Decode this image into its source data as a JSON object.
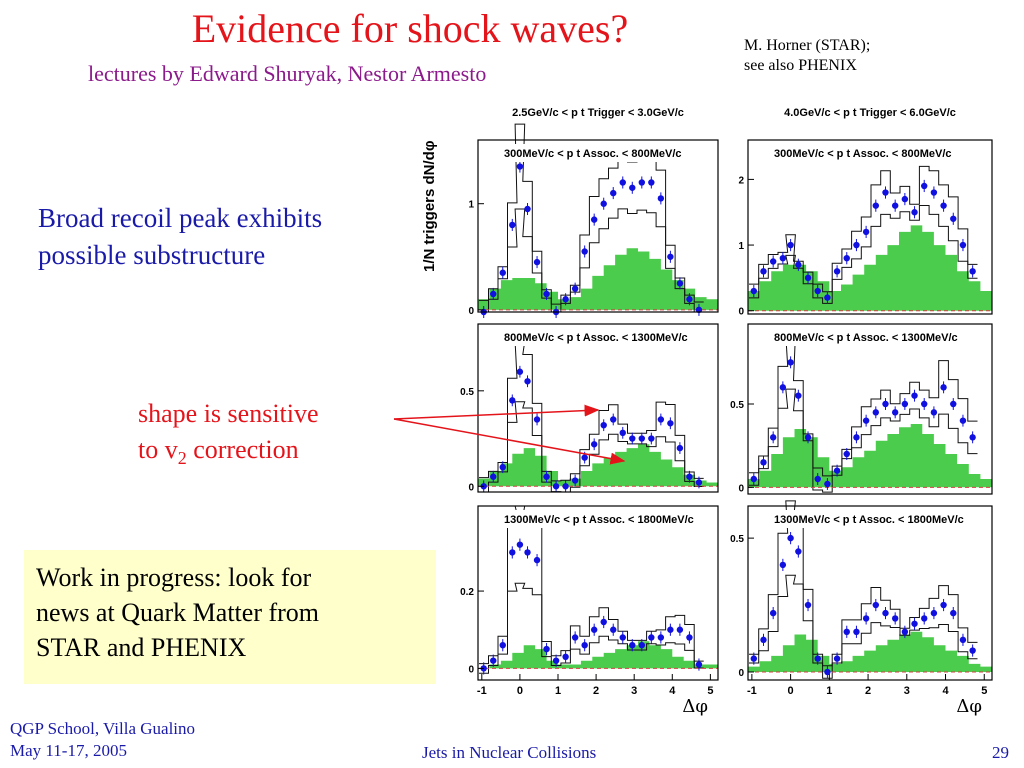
{
  "slide": {
    "title": "Evidence for shock waves?",
    "subtitle": "lectures by Edward Shuryak, Nestor Armesto",
    "credit_line1": "M. Horner (STAR);",
    "credit_line2": "see also PHENIX",
    "bullet_line1": "Broad recoil peak exhibits",
    "bullet_line2": "possible substructure",
    "annotation_line1": "shape is sensitive",
    "annotation_line2_prefix": "to v",
    "annotation_sub": "2",
    "annotation_line2_suffix": " correction",
    "note_line1": "Work in progress: look for",
    "note_line2": "news at Quark Matter from",
    "note_line3": "STAR and PHENIX",
    "footer_left1": "QGP School, Villa Gualino",
    "footer_left2": "May 11-17, 2005",
    "footer_center": "Jets in Nuclear Collisions",
    "page_number": "29",
    "colors": {
      "title": "#e4141b",
      "subtitle": "#8b1a8b",
      "text": "#1a1aa8",
      "note_bg": "#ffffcc",
      "histogram_fill": "#4ccc4c",
      "points": "#1010e0"
    }
  },
  "chart_data": {
    "type": "scatter",
    "ylabel": "1/N triggers dN/dφ",
    "xlabel": "Δφ",
    "x_ticks": [
      "-1",
      "0",
      "1",
      "2",
      "3",
      "4",
      "5"
    ],
    "xlim": [
      -1.1,
      5.2
    ],
    "trigger_bins": [
      "2.5GeV/c < p t Trigger < 3.0GeV/c",
      "4.0GeV/c < p t Trigger < 6.0GeV/c"
    ],
    "panels": [
      {
        "label": "300MeV/c < p t Assoc. < 800MeV/c",
        "y_ticks": [
          "0",
          "1"
        ],
        "ylim": [
          -0.02,
          1.6
        ],
        "points": [
          [
            -0.95,
            -0.02
          ],
          [
            -0.7,
            0.15
          ],
          [
            -0.45,
            0.35
          ],
          [
            -0.2,
            0.8
          ],
          [
            0,
            1.35
          ],
          [
            0.2,
            0.95
          ],
          [
            0.45,
            0.45
          ],
          [
            0.7,
            0.15
          ],
          [
            0.95,
            -0.02
          ],
          [
            1.2,
            0.1
          ],
          [
            1.45,
            0.2
          ],
          [
            1.7,
            0.55
          ],
          [
            1.95,
            0.85
          ],
          [
            2.2,
            1.0
          ],
          [
            2.45,
            1.1
          ],
          [
            2.7,
            1.2
          ],
          [
            2.95,
            1.15
          ],
          [
            3.2,
            1.2
          ],
          [
            3.45,
            1.2
          ],
          [
            3.7,
            1.05
          ],
          [
            3.95,
            0.5
          ],
          [
            4.2,
            0.25
          ],
          [
            4.45,
            0.1
          ],
          [
            4.7,
            0.0
          ]
        ],
        "bg": [
          [
            -1.1,
            0.1
          ],
          [
            -0.8,
            0.2
          ],
          [
            -0.5,
            0.28
          ],
          [
            -0.2,
            0.3
          ],
          [
            0.1,
            0.3
          ],
          [
            0.4,
            0.25
          ],
          [
            0.7,
            0.17
          ],
          [
            1.0,
            0.1
          ],
          [
            1.3,
            0.12
          ],
          [
            1.6,
            0.2
          ],
          [
            1.9,
            0.32
          ],
          [
            2.2,
            0.42
          ],
          [
            2.5,
            0.52
          ],
          [
            2.8,
            0.58
          ],
          [
            3.1,
            0.55
          ],
          [
            3.4,
            0.48
          ],
          [
            3.7,
            0.38
          ],
          [
            4.0,
            0.28
          ],
          [
            4.3,
            0.2
          ],
          [
            4.6,
            0.12
          ],
          [
            4.9,
            0.1
          ]
        ]
      },
      {
        "label": "800MeV/c < p t Assoc. < 1300MeV/c",
        "y_ticks": [
          "0",
          "0.5"
        ],
        "ylim": [
          -0.03,
          0.85
        ],
        "points": [
          [
            -0.95,
            0.0
          ],
          [
            -0.7,
            0.05
          ],
          [
            -0.45,
            0.1
          ],
          [
            -0.2,
            0.45
          ],
          [
            0,
            0.6
          ],
          [
            0.2,
            0.55
          ],
          [
            0.45,
            0.35
          ],
          [
            0.7,
            0.05
          ],
          [
            0.95,
            0.0
          ],
          [
            1.2,
            0.0
          ],
          [
            1.45,
            0.03
          ],
          [
            1.7,
            0.15
          ],
          [
            1.95,
            0.22
          ],
          [
            2.2,
            0.32
          ],
          [
            2.45,
            0.35
          ],
          [
            2.7,
            0.28
          ],
          [
            2.95,
            0.25
          ],
          [
            3.2,
            0.25
          ],
          [
            3.45,
            0.25
          ],
          [
            3.7,
            0.35
          ],
          [
            3.95,
            0.33
          ],
          [
            4.2,
            0.2
          ],
          [
            4.45,
            0.05
          ],
          [
            4.7,
            0.02
          ]
        ],
        "bg": [
          [
            -1.1,
            0.04
          ],
          [
            -0.8,
            0.08
          ],
          [
            -0.5,
            0.12
          ],
          [
            -0.2,
            0.17
          ],
          [
            0.1,
            0.2
          ],
          [
            0.4,
            0.16
          ],
          [
            0.7,
            0.08
          ],
          [
            1.0,
            0.03
          ],
          [
            1.3,
            0.04
          ],
          [
            1.6,
            0.08
          ],
          [
            1.9,
            0.12
          ],
          [
            2.2,
            0.15
          ],
          [
            2.5,
            0.18
          ],
          [
            2.8,
            0.2
          ],
          [
            3.1,
            0.22
          ],
          [
            3.4,
            0.18
          ],
          [
            3.7,
            0.14
          ],
          [
            4.0,
            0.1
          ],
          [
            4.3,
            0.06
          ],
          [
            4.6,
            0.03
          ],
          [
            4.9,
            0.02
          ]
        ]
      },
      {
        "label": "1300MeV/c < p t Assoc. < 1800MeV/c",
        "y_ticks": [
          "0",
          "0.2"
        ],
        "ylim": [
          -0.03,
          0.42
        ],
        "points": [
          [
            -0.95,
            0.0
          ],
          [
            -0.7,
            0.02
          ],
          [
            -0.45,
            0.06
          ],
          [
            -0.2,
            0.3
          ],
          [
            0,
            0.32
          ],
          [
            0.2,
            0.3
          ],
          [
            0.45,
            0.28
          ],
          [
            0.7,
            0.05
          ],
          [
            0.95,
            0.02
          ],
          [
            1.2,
            0.03
          ],
          [
            1.45,
            0.08
          ],
          [
            1.7,
            0.06
          ],
          [
            1.95,
            0.1
          ],
          [
            2.2,
            0.12
          ],
          [
            2.45,
            0.1
          ],
          [
            2.7,
            0.08
          ],
          [
            2.95,
            0.06
          ],
          [
            3.2,
            0.06
          ],
          [
            3.45,
            0.08
          ],
          [
            3.7,
            0.08
          ],
          [
            3.95,
            0.1
          ],
          [
            4.2,
            0.1
          ],
          [
            4.45,
            0.08
          ],
          [
            4.7,
            0.01
          ]
        ],
        "bg": [
          [
            -1.1,
            0.0
          ],
          [
            -0.8,
            0.01
          ],
          [
            -0.5,
            0.02
          ],
          [
            -0.2,
            0.04
          ],
          [
            0.1,
            0.06
          ],
          [
            0.4,
            0.05
          ],
          [
            0.7,
            0.02
          ],
          [
            1.0,
            0.01
          ],
          [
            1.3,
            0.01
          ],
          [
            1.6,
            0.02
          ],
          [
            1.9,
            0.03
          ],
          [
            2.2,
            0.04
          ],
          [
            2.5,
            0.05
          ],
          [
            2.8,
            0.06
          ],
          [
            3.1,
            0.07
          ],
          [
            3.4,
            0.06
          ],
          [
            3.7,
            0.05
          ],
          [
            4.0,
            0.03
          ],
          [
            4.3,
            0.02
          ],
          [
            4.6,
            0.01
          ],
          [
            4.9,
            0.01
          ]
        ]
      },
      {
        "label": "300MeV/c < p t Assoc. < 800MeV/c",
        "y_ticks": [
          "0",
          "1",
          "2"
        ],
        "ylim": [
          -0.05,
          2.6
        ],
        "points": [
          [
            -0.95,
            0.3
          ],
          [
            -0.7,
            0.6
          ],
          [
            -0.45,
            0.75
          ],
          [
            -0.2,
            0.8
          ],
          [
            0,
            1.0
          ],
          [
            0.2,
            0.7
          ],
          [
            0.45,
            0.5
          ],
          [
            0.7,
            0.3
          ],
          [
            0.95,
            0.2
          ],
          [
            1.2,
            0.6
          ],
          [
            1.45,
            0.8
          ],
          [
            1.7,
            1.0
          ],
          [
            1.95,
            1.2
          ],
          [
            2.2,
            1.6
          ],
          [
            2.45,
            1.8
          ],
          [
            2.7,
            1.6
          ],
          [
            2.95,
            1.7
          ],
          [
            3.2,
            1.5
          ],
          [
            3.45,
            1.9
          ],
          [
            3.7,
            1.8
          ],
          [
            3.95,
            1.6
          ],
          [
            4.2,
            1.4
          ],
          [
            4.45,
            1.0
          ],
          [
            4.7,
            0.6
          ]
        ],
        "bg": [
          [
            -1.1,
            0.3
          ],
          [
            -0.8,
            0.45
          ],
          [
            -0.5,
            0.6
          ],
          [
            -0.2,
            0.7
          ],
          [
            0.1,
            0.7
          ],
          [
            0.4,
            0.6
          ],
          [
            0.7,
            0.45
          ],
          [
            1.0,
            0.3
          ],
          [
            1.3,
            0.4
          ],
          [
            1.6,
            0.55
          ],
          [
            1.9,
            0.7
          ],
          [
            2.2,
            0.85
          ],
          [
            2.5,
            1.0
          ],
          [
            2.8,
            1.2
          ],
          [
            3.1,
            1.3
          ],
          [
            3.4,
            1.2
          ],
          [
            3.7,
            1.0
          ],
          [
            4.0,
            0.85
          ],
          [
            4.3,
            0.6
          ],
          [
            4.6,
            0.45
          ],
          [
            4.9,
            0.3
          ]
        ]
      },
      {
        "label": "800MeV/c < p t Assoc. < 1300MeV/c",
        "y_ticks": [
          "0",
          "0.5"
        ],
        "ylim": [
          -0.04,
          0.98
        ],
        "points": [
          [
            -0.95,
            0.05
          ],
          [
            -0.7,
            0.15
          ],
          [
            -0.45,
            0.3
          ],
          [
            -0.2,
            0.6
          ],
          [
            0,
            0.75
          ],
          [
            0.2,
            0.55
          ],
          [
            0.45,
            0.3
          ],
          [
            0.7,
            0.05
          ],
          [
            0.95,
            0.02
          ],
          [
            1.2,
            0.1
          ],
          [
            1.45,
            0.2
          ],
          [
            1.7,
            0.3
          ],
          [
            1.95,
            0.4
          ],
          [
            2.2,
            0.45
          ],
          [
            2.45,
            0.5
          ],
          [
            2.7,
            0.45
          ],
          [
            2.95,
            0.5
          ],
          [
            3.2,
            0.55
          ],
          [
            3.45,
            0.5
          ],
          [
            3.7,
            0.45
          ],
          [
            3.95,
            0.6
          ],
          [
            4.2,
            0.5
          ],
          [
            4.45,
            0.4
          ],
          [
            4.7,
            0.3
          ]
        ],
        "bg": [
          [
            -1.1,
            0.05
          ],
          [
            -0.8,
            0.1
          ],
          [
            -0.5,
            0.2
          ],
          [
            -0.2,
            0.3
          ],
          [
            0.1,
            0.35
          ],
          [
            0.4,
            0.3
          ],
          [
            0.7,
            0.18
          ],
          [
            1.0,
            0.1
          ],
          [
            1.3,
            0.12
          ],
          [
            1.6,
            0.18
          ],
          [
            1.9,
            0.22
          ],
          [
            2.2,
            0.28
          ],
          [
            2.5,
            0.32
          ],
          [
            2.8,
            0.36
          ],
          [
            3.1,
            0.38
          ],
          [
            3.4,
            0.32
          ],
          [
            3.7,
            0.26
          ],
          [
            4.0,
            0.2
          ],
          [
            4.3,
            0.14
          ],
          [
            4.6,
            0.08
          ],
          [
            4.9,
            0.05
          ]
        ]
      },
      {
        "label": "1300MeV/c < p t Assoc. < 1800MeV/c",
        "y_ticks": [
          "0",
          "0.5"
        ],
        "ylim": [
          -0.03,
          0.62
        ],
        "points": [
          [
            -0.95,
            0.05
          ],
          [
            -0.7,
            0.12
          ],
          [
            -0.45,
            0.22
          ],
          [
            -0.2,
            0.4
          ],
          [
            0,
            0.5
          ],
          [
            0.2,
            0.45
          ],
          [
            0.45,
            0.25
          ],
          [
            0.7,
            0.05
          ],
          [
            0.95,
            0.0
          ],
          [
            1.2,
            0.05
          ],
          [
            1.45,
            0.15
          ],
          [
            1.7,
            0.15
          ],
          [
            1.95,
            0.2
          ],
          [
            2.2,
            0.25
          ],
          [
            2.45,
            0.22
          ],
          [
            2.7,
            0.2
          ],
          [
            2.95,
            0.15
          ],
          [
            3.2,
            0.18
          ],
          [
            3.45,
            0.2
          ],
          [
            3.7,
            0.22
          ],
          [
            3.95,
            0.25
          ],
          [
            4.2,
            0.22
          ],
          [
            4.45,
            0.12
          ],
          [
            4.7,
            0.08
          ]
        ],
        "bg": [
          [
            -1.1,
            0.02
          ],
          [
            -0.8,
            0.04
          ],
          [
            -0.5,
            0.06
          ],
          [
            -0.2,
            0.1
          ],
          [
            0.1,
            0.14
          ],
          [
            0.4,
            0.12
          ],
          [
            0.7,
            0.06
          ],
          [
            1.0,
            0.03
          ],
          [
            1.3,
            0.04
          ],
          [
            1.6,
            0.06
          ],
          [
            1.9,
            0.08
          ],
          [
            2.2,
            0.1
          ],
          [
            2.5,
            0.12
          ],
          [
            2.8,
            0.14
          ],
          [
            3.1,
            0.15
          ],
          [
            3.4,
            0.13
          ],
          [
            3.7,
            0.1
          ],
          [
            4.0,
            0.08
          ],
          [
            4.3,
            0.06
          ],
          [
            4.6,
            0.03
          ],
          [
            4.9,
            0.02
          ]
        ]
      }
    ]
  }
}
